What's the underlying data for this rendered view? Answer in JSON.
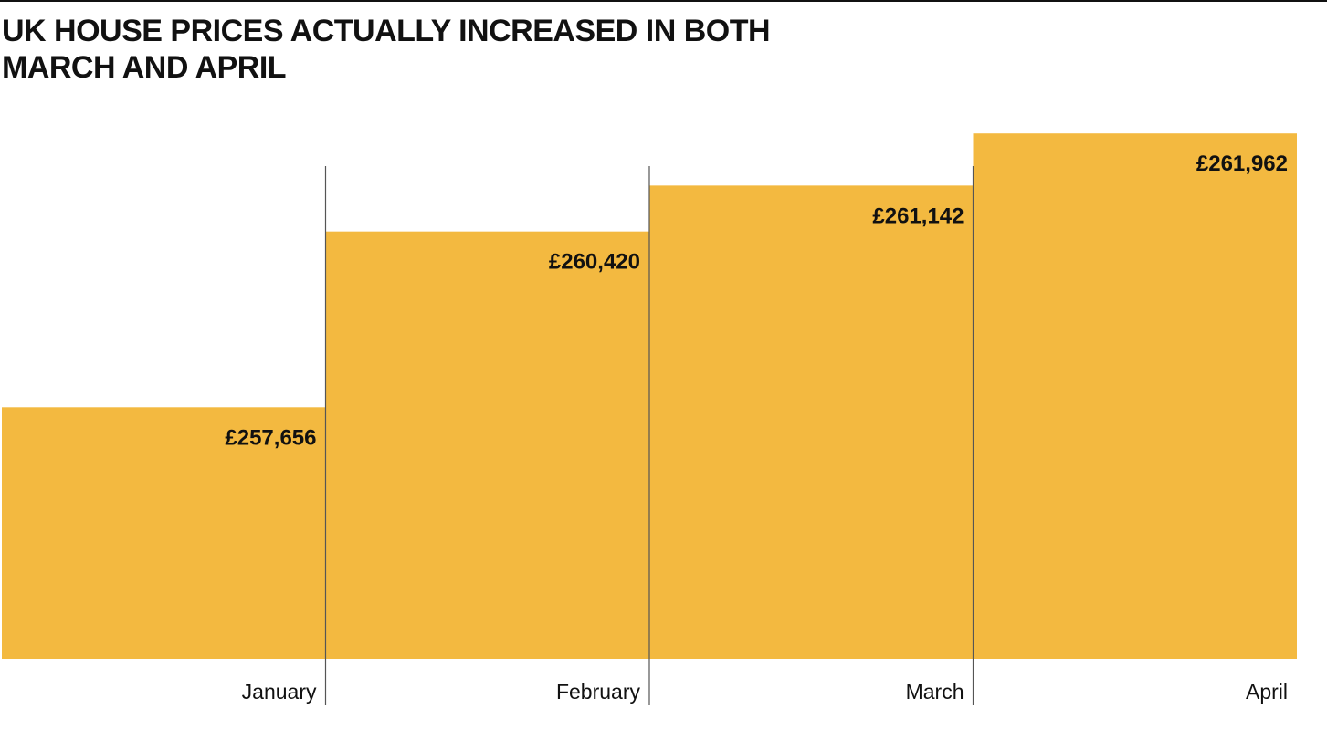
{
  "page": {
    "title": "UK HOUSE PRICES ACTUALLY INCREASED IN BOTH MARCH AND APRIL"
  },
  "chart_data": {
    "type": "bar",
    "title": "UK HOUSE PRICES ACTUALLY INCREASED IN BOTH MARCH AND APRIL",
    "categories": [
      "January",
      "February",
      "March",
      "April"
    ],
    "values": [
      257656,
      260420,
      261142,
      261962
    ],
    "data_labels": [
      "£257,656",
      "£260,420",
      "£261,142",
      "£261,962"
    ],
    "xlabel": "",
    "ylabel": "",
    "ylim": [
      253700,
      264060
    ],
    "grid": false,
    "legend": "none",
    "colors": {
      "bar": "#F3B940",
      "divider": "#555555",
      "text": "#111111"
    }
  }
}
